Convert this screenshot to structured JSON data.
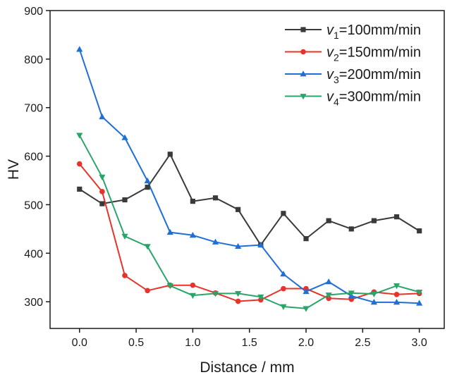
{
  "chart_data": {
    "type": "line",
    "xlabel": "Distance / mm",
    "ylabel": "HV",
    "xlim": [
      -0.26,
      3.22
    ],
    "ylim": [
      245,
      900
    ],
    "x": [
      0.0,
      0.2,
      0.4,
      0.6,
      0.8,
      1.0,
      1.2,
      1.4,
      1.6,
      1.8,
      2.0,
      2.2,
      2.4,
      2.6,
      2.8,
      3.0
    ],
    "x_ticks": [
      0.0,
      0.5,
      1.0,
      1.5,
      2.0,
      2.5,
      3.0
    ],
    "x_tick_labels": [
      "0.0",
      "0.5",
      "1.0",
      "1.5",
      "2.0",
      "2.5",
      "3.0"
    ],
    "y_ticks": [
      300,
      400,
      500,
      600,
      700,
      800,
      900
    ],
    "y_tick_labels": [
      "300",
      "400",
      "500",
      "600",
      "700",
      "800",
      "900"
    ],
    "grid": false,
    "legend_position": "top-right",
    "series": [
      {
        "name": "v1=100mm/min",
        "label_var": "v",
        "label_sub": "1",
        "label_rest": "=100mm/min",
        "color": "#3a3a3a",
        "marker": "square",
        "values": [
          532,
          502,
          510,
          536,
          604,
          507,
          514,
          490,
          417,
          482,
          430,
          467,
          450,
          467,
          475,
          446
        ]
      },
      {
        "name": "v2=150mm/min",
        "label_var": "v",
        "label_sub": "2",
        "label_rest": "=150mm/min",
        "color": "#e8332a",
        "marker": "circle",
        "values": [
          584,
          527,
          354,
          323,
          334,
          334,
          318,
          301,
          304,
          327,
          327,
          307,
          305,
          320,
          315,
          317
        ]
      },
      {
        "name": "v3=200mm/min",
        "label_var": "v",
        "label_sub": "3",
        "label_rest": "=200mm/min",
        "color": "#1f6fd6",
        "marker": "triangle-up",
        "values": [
          820,
          681,
          638,
          549,
          443,
          437,
          423,
          414,
          417,
          357,
          321,
          341,
          312,
          299,
          299,
          297
        ]
      },
      {
        "name": "v4=300mm/min",
        "label_var": "v",
        "label_sub": "4",
        "label_rest": "=300mm/min",
        "color": "#2aa56a",
        "marker": "triangle-down",
        "values": [
          643,
          557,
          435,
          414,
          333,
          313,
          317,
          317,
          310,
          290,
          286,
          314,
          318,
          316,
          333,
          320
        ]
      }
    ]
  }
}
